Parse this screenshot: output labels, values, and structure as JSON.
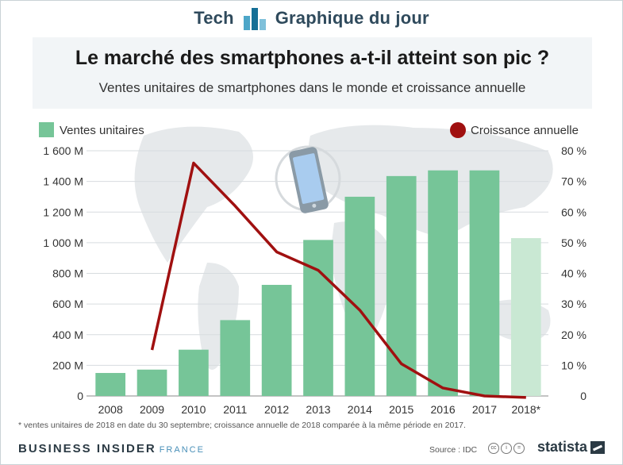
{
  "header": {
    "tech_label": "Tech",
    "gdj_label": "Graphique du jour",
    "logo_icon": "bar-logo-icon"
  },
  "chart_data": {
    "type": "bar",
    "title": "Le marché des smartphones a-t-il atteint son pic ?",
    "subtitle": "Ventes unitaires de smartphones dans le monde et croissance annuelle",
    "categories": [
      "2008",
      "2009",
      "2010",
      "2011",
      "2012",
      "2013",
      "2014",
      "2015",
      "2016",
      "2017",
      "2018*"
    ],
    "series": [
      {
        "name": "Ventes unitaires",
        "type": "bar",
        "axis": "left",
        "values": [
          150,
          172,
          302,
          495,
          725,
          1018,
          1300,
          1435,
          1472,
          1472,
          1030
        ],
        "color": "#76c598",
        "highlight_last_color": "#c9e8d3"
      },
      {
        "name": "Croissance annuelle",
        "type": "line",
        "axis": "right",
        "values": [
          null,
          15,
          76,
          62,
          47,
          41,
          28,
          10.5,
          2.6,
          0,
          -0.5
        ],
        "color": "#a01010"
      }
    ],
    "y_left": {
      "ylim": [
        0,
        1600
      ],
      "ticks": [
        0,
        200,
        400,
        600,
        800,
        1000,
        1200,
        1400,
        1600
      ],
      "tick_labels": [
        "0",
        "200 M",
        "400 M",
        "600 M",
        "800 M",
        "1 000 M",
        "1 200 M",
        "1 400 M",
        "1 600 M"
      ]
    },
    "y_right": {
      "ylim": [
        0,
        80
      ],
      "ticks": [
        0,
        10,
        20,
        30,
        40,
        50,
        60,
        70,
        80
      ],
      "tick_labels": [
        "0",
        "10 %",
        "20 %",
        "30 %",
        "40 %",
        "50 %",
        "60 %",
        "70 %",
        "80 %"
      ]
    },
    "grid": true,
    "legend": {
      "bar_label": "Ventes unitaires",
      "line_label": "Croissance annuelle",
      "bar_placement": "top-left",
      "line_placement": "top-right"
    },
    "decorations": [
      "world-map-background",
      "smartphone-icon"
    ]
  },
  "footer": {
    "footnote": "* ventes unitaires de 2018 en date du 30 septembre; croissance annuelle de 2018 comparée à la même période en 2017.",
    "bi_logo": "BUSINESS INSIDER",
    "bi_france": "FRANCE",
    "source": "Source : IDC",
    "statista": "statista"
  }
}
